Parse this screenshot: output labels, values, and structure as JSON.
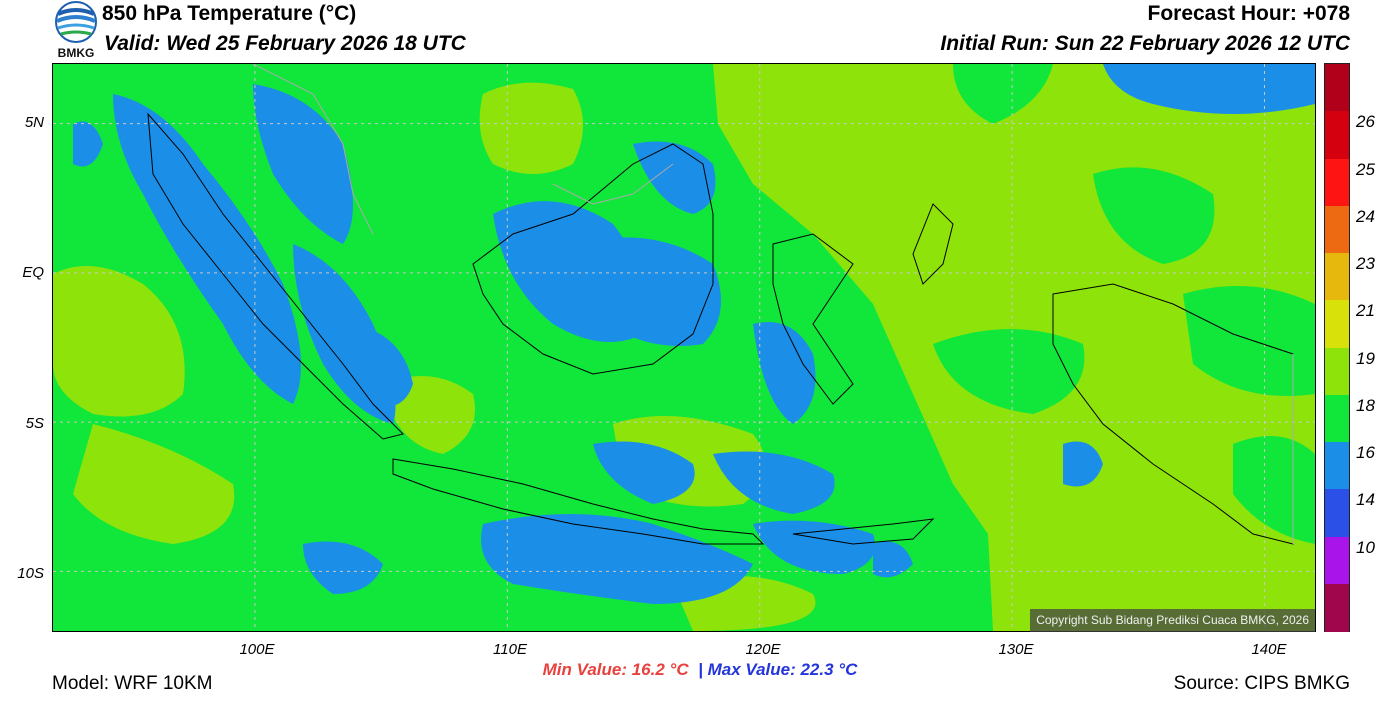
{
  "header": {
    "title": "850 hPa Temperature (°C)",
    "valid": "Valid: Wed 25 February 2026 18 UTC",
    "forecast_hour": "Forecast Hour: +078",
    "initial_run": "Initial Run: Sun 22 February 2026 12 UTC",
    "logo_text": "BMKG"
  },
  "map": {
    "lat_labels": [
      "5N",
      "EQ",
      "5S",
      "10S"
    ],
    "lon_labels": [
      "100E",
      "110E",
      "120E",
      "130E",
      "140E"
    ],
    "lat_values": [
      5,
      0,
      -5,
      -10
    ],
    "lon_values": [
      100,
      110,
      120,
      130,
      140
    ],
    "lon_range": [
      92,
      142
    ],
    "lat_range": [
      -12,
      7
    ],
    "copyright": "Copyright Sub Bidang Prediksi Cuaca BMKG, 2026"
  },
  "colorbar": {
    "labels": [
      "26",
      "25",
      "24",
      "23",
      "21",
      "19",
      "18",
      "16",
      "14",
      "10"
    ],
    "colors": [
      "#b0001a",
      "#d40010",
      "#ff1414",
      "#ee6a12",
      "#e6b70c",
      "#d8e10a",
      "#8ee40a",
      "#11e63a",
      "#1b8fe8",
      "#2a50e8",
      "#a814ea",
      "#a0064c"
    ],
    "field_colors": {
      "c18_19": "#11e63a",
      "c16_18": "#1b8fe8",
      "c19_21": "#8ee40a"
    }
  },
  "stats": {
    "min_label": "Min Value: 16.2 °C",
    "separator": "|",
    "max_label": "Max Value: 22.3 °C"
  },
  "footer": {
    "model": "Model: WRF 10KM",
    "source": "Source: CIPS BMKG"
  }
}
